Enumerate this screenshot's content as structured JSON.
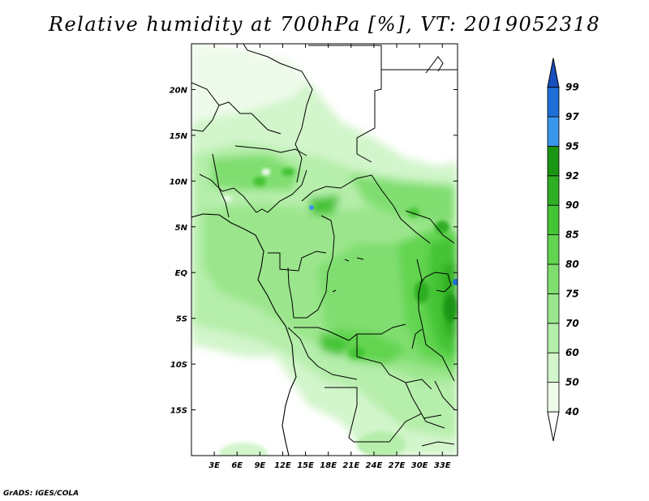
{
  "title": "Relative humidity at 700hPa [%], VT: 2019052318",
  "credit": "GrADS: IGES/COLA",
  "colors": {
    "rh40_50": "#eefbea",
    "rh50_60": "#d2f5cb",
    "rh60_70": "#b6eeab",
    "rh70_75": "#9be68c",
    "rh75_80": "#80de6f",
    "rh80_85": "#62d450",
    "rh85_90": "#45c436",
    "rh90_92": "#2fae23",
    "rh92_95": "#1a9514",
    "rh95_97": "#3a96ec",
    "rh97_99": "#1e6fd6",
    "rh99": "#1a4fbf"
  },
  "map": {
    "lon_range": [
      0,
      35
    ],
    "lat_range": [
      -20,
      25
    ],
    "lon_ticks": [
      "3E",
      "6E",
      "9E",
      "12E",
      "15E",
      "18E",
      "21E",
      "24E",
      "27E",
      "30E",
      "33E"
    ],
    "lat_ticks": [
      "20N",
      "15N",
      "10N",
      "5N",
      "EQ",
      "5S",
      "10S",
      "15S"
    ]
  },
  "colorbar": {
    "levels": [
      "40",
      "50",
      "60",
      "70",
      "75",
      "80",
      "85",
      "90",
      "92",
      "95",
      "97",
      "99"
    ]
  }
}
